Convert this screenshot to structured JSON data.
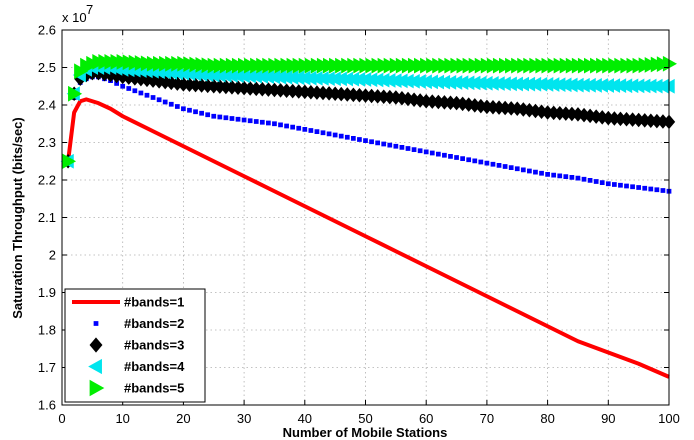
{
  "chart_data": {
    "type": "line",
    "title": "",
    "xlabel": "Number of Mobile Stations",
    "ylabel": "Saturation Throughput (bits/sec)",
    "y_multiplier_label": "x 10",
    "y_multiplier_exponent": "7",
    "xlim": [
      0,
      100
    ],
    "ylim": [
      1.6,
      2.6
    ],
    "xticks": [
      "0",
      "10",
      "20",
      "30",
      "40",
      "50",
      "60",
      "70",
      "80",
      "90",
      "100"
    ],
    "yticks": [
      "1.6",
      "1.7",
      "1.8",
      "1.9",
      "2",
      "2.1",
      "2.2",
      "2.3",
      "2.4",
      "2.5",
      "2.6"
    ],
    "grid": true,
    "legend_position": "bottom-left",
    "x": [
      1,
      2,
      3,
      4,
      5,
      6,
      8,
      10,
      15,
      20,
      25,
      30,
      35,
      40,
      45,
      50,
      55,
      60,
      65,
      70,
      75,
      80,
      85,
      90,
      95,
      100
    ],
    "series": [
      {
        "name": "#bands=1",
        "color": "#ff0000",
        "marker": "line",
        "values": [
          2.25,
          2.38,
          2.41,
          2.415,
          2.41,
          2.405,
          2.39,
          2.37,
          2.33,
          2.29,
          2.25,
          2.21,
          2.17,
          2.13,
          2.09,
          2.05,
          2.01,
          1.97,
          1.93,
          1.89,
          1.85,
          1.81,
          1.77,
          1.74,
          1.71,
          1.675
        ]
      },
      {
        "name": "#bands=2",
        "color": "#0000ff",
        "marker": "square",
        "values": [
          2.25,
          2.42,
          2.46,
          2.47,
          2.475,
          2.475,
          2.465,
          2.45,
          2.42,
          2.39,
          2.37,
          2.36,
          2.35,
          2.335,
          2.32,
          2.305,
          2.29,
          2.275,
          2.26,
          2.245,
          2.23,
          2.215,
          2.205,
          2.19,
          2.18,
          2.17
        ]
      },
      {
        "name": "#bands=3",
        "color": "#000000",
        "marker": "diamond",
        "values": [
          2.25,
          2.43,
          2.47,
          2.48,
          2.485,
          2.485,
          2.48,
          2.475,
          2.465,
          2.455,
          2.45,
          2.445,
          2.44,
          2.435,
          2.43,
          2.425,
          2.42,
          2.41,
          2.405,
          2.395,
          2.39,
          2.38,
          2.375,
          2.365,
          2.36,
          2.355
        ]
      },
      {
        "name": "#bands=4",
        "color": "#00e5ee",
        "marker": "triangle-left",
        "values": [
          2.25,
          2.43,
          2.48,
          2.495,
          2.5,
          2.5,
          2.5,
          2.495,
          2.49,
          2.485,
          2.48,
          2.478,
          2.475,
          2.472,
          2.47,
          2.468,
          2.465,
          2.462,
          2.46,
          2.458,
          2.456,
          2.455,
          2.453,
          2.452,
          2.451,
          2.45
        ]
      },
      {
        "name": "#bands=5",
        "color": "#00ee00",
        "marker": "triangle-right",
        "values": [
          2.25,
          2.43,
          2.49,
          2.505,
          2.51,
          2.515,
          2.515,
          2.515,
          2.51,
          2.51,
          2.505,
          2.505,
          2.505,
          2.505,
          2.505,
          2.505,
          2.505,
          2.505,
          2.505,
          2.505,
          2.505,
          2.505,
          2.505,
          2.505,
          2.505,
          2.51
        ]
      }
    ]
  }
}
